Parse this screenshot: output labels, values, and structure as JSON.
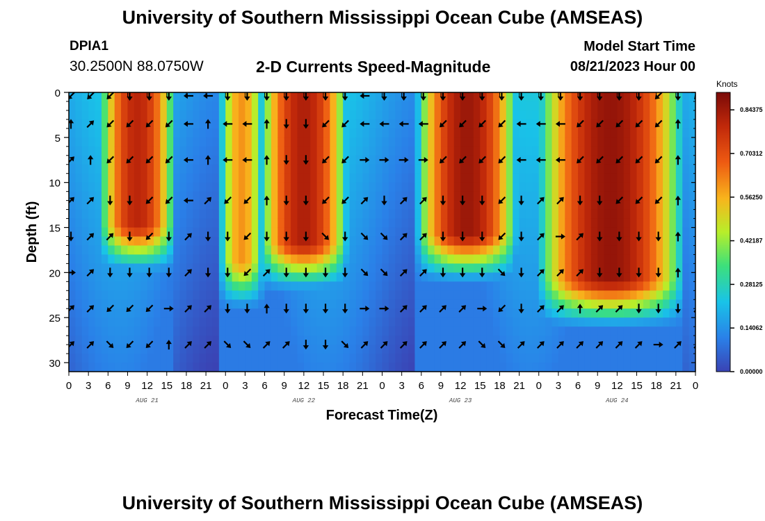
{
  "page": {
    "title": "University of Southern Mississippi Ocean Cube (AMSEAS)",
    "footer_title": "University of Southern Mississippi Ocean Cube (AMSEAS)",
    "station_id": "DPIA1",
    "coordinates": "30.2500N  88.0750W",
    "plot_title": "2-D Currents Speed-Magnitude",
    "model_start_label": "Model Start Time",
    "model_start_value": "08/21/2023 Hour 00"
  },
  "chart_data": {
    "type": "heatmap",
    "title": "2-D Currents Speed-Magnitude",
    "xlabel": "Forecast Time(Z)",
    "ylabel": "Depth (ft)",
    "x_ticks": [
      "0",
      "3",
      "6",
      "9",
      "12",
      "15",
      "18",
      "21",
      "0",
      "3",
      "6",
      "9",
      "12",
      "15",
      "18",
      "21",
      "0",
      "3",
      "6",
      "9",
      "12",
      "15",
      "18",
      "21",
      "0",
      "3",
      "6",
      "9",
      "12",
      "15",
      "18",
      "21",
      "0"
    ],
    "day_labels": [
      "AUG 21",
      "AUG 22",
      "AUG 23",
      "AUG 24"
    ],
    "y_ticks": [
      "0",
      "5",
      "10",
      "15",
      "20",
      "25",
      "30"
    ],
    "ylim": [
      0,
      31
    ],
    "xlim_hours": [
      0,
      96
    ],
    "colorbar": {
      "unit": "Knots",
      "min": 0.0,
      "max": 0.9,
      "tick_labels": [
        "0.84375",
        "0.70312",
        "0.56250",
        "0.42187",
        "0.28125",
        "0.14062",
        "0.00000"
      ],
      "tick_values": [
        0.84375,
        0.703125,
        0.5625,
        0.421875,
        0.28125,
        0.140625,
        0.0
      ]
    },
    "speed_model": {
      "depth_rows_ft": [
        0.5,
        1.5,
        2.5,
        3.5,
        4.5,
        5.5,
        6.5,
        7.5,
        8.5,
        9.5,
        10.5,
        11.5,
        12.5,
        13.5,
        14.5,
        15.5,
        16.5,
        17.5,
        18.5,
        19.5,
        20.5,
        21.5,
        22.5,
        23.5,
        24.5,
        25.5,
        26.5,
        27.5,
        28.5,
        29.5,
        30.5
      ],
      "hours": [
        0,
        3,
        6,
        9,
        12,
        15,
        18,
        21,
        24,
        27,
        30,
        33,
        36,
        39,
        42,
        45,
        48,
        51,
        54,
        57,
        60,
        63,
        66,
        69,
        72,
        75,
        78,
        81,
        84,
        87,
        90,
        93,
        96
      ],
      "bursts": [
        {
          "start_h": 7,
          "end_h": 14,
          "peak": 0.8,
          "max_depth_ft": 15
        },
        {
          "start_h": 25.5,
          "end_h": 27.5,
          "peak": 0.6,
          "max_depth_ft": 19
        },
        {
          "start_h": 31.5,
          "end_h": 40.5,
          "peak": 0.82,
          "max_depth_ft": 17
        },
        {
          "start_h": 55.5,
          "end_h": 66.5,
          "peak": 0.85,
          "max_depth_ft": 16
        },
        {
          "start_h": 74,
          "end_h": 92,
          "peak": 0.86,
          "max_depth_ft": 21
        }
      ],
      "background_speed": 0.18
    },
    "vector_rows_depth_ft": [
      0,
      3.5,
      7.5,
      12,
      16,
      20,
      24,
      28
    ],
    "vector_cols_hours": [
      0,
      3,
      6,
      9,
      12,
      15,
      18,
      21,
      24,
      27,
      30,
      33,
      36,
      39,
      42,
      45,
      48,
      51,
      54,
      57,
      60,
      63,
      66,
      69,
      72,
      75,
      78,
      81,
      84,
      87,
      90,
      93,
      96
    ],
    "vector_directions_deg": [
      [
        "SW",
        "SW",
        "SW",
        "S",
        "S",
        "S",
        "W",
        "W",
        "S",
        "S",
        "S",
        "S",
        "S",
        "S",
        "S",
        "W",
        "S",
        "S",
        "S",
        "S",
        "S",
        "S",
        "S",
        "S",
        "S",
        "S",
        "S",
        "S",
        "S",
        "S",
        "SW",
        "S",
        "SW"
      ],
      [
        "N",
        "NE",
        "SW",
        "SW",
        "SW",
        "SW",
        "W",
        "N",
        "W",
        "W",
        "N",
        "S",
        "S",
        "SW",
        "SW",
        "W",
        "W",
        "W",
        "W",
        "SW",
        "SW",
        "SW",
        "SW",
        "W",
        "W",
        "W",
        "SW",
        "SW",
        "SW",
        "SW",
        "SW",
        "N",
        "N"
      ],
      [
        "NE",
        "N",
        "SW",
        "SW",
        "SW",
        "SW",
        "W",
        "N",
        "W",
        "W",
        "N",
        "S",
        "S",
        "SW",
        "SW",
        "E",
        "E",
        "E",
        "E",
        "SW",
        "SW",
        "SW",
        "SW",
        "W",
        "W",
        "W",
        "SW",
        "SW",
        "SW",
        "SW",
        "SW",
        "N",
        "N"
      ],
      [
        "NE",
        "NE",
        "S",
        "S",
        "SW",
        "SW",
        "W",
        "NE",
        "SW",
        "SW",
        "N",
        "S",
        "S",
        "SW",
        "SW",
        "NE",
        "S",
        "NE",
        "NE",
        "S",
        "S",
        "S",
        "SW",
        "S",
        "NE",
        "NE",
        "S",
        "S",
        "SW",
        "SW",
        "SW",
        "N",
        "N"
      ],
      [
        "S",
        "NE",
        "NE",
        "S",
        "SW",
        "S",
        "NE",
        "S",
        "S",
        "SW",
        "S",
        "S",
        "S",
        "SE",
        "S",
        "SE",
        "SE",
        "NE",
        "NE",
        "S",
        "S",
        "S",
        "SW",
        "S",
        "NE",
        "E",
        "NE",
        "S",
        "S",
        "S",
        "S",
        "N",
        "N"
      ],
      [
        "E",
        "NE",
        "S",
        "S",
        "S",
        "S",
        "NE",
        "S",
        "S",
        "SW",
        "NE",
        "S",
        "S",
        "S",
        "S",
        "SE",
        "SE",
        "NE",
        "NE",
        "S",
        "S",
        "S",
        "SE",
        "S",
        "NE",
        "NE",
        "NE",
        "S",
        "S",
        "S",
        "S",
        "N",
        "N"
      ],
      [
        "NE",
        "NE",
        "SW",
        "SW",
        "SW",
        "E",
        "NE",
        "NE",
        "S",
        "S",
        "N",
        "S",
        "S",
        "S",
        "S",
        "E",
        "E",
        "NE",
        "NE",
        "NE",
        "NE",
        "E",
        "SW",
        "S",
        "NE",
        "NE",
        "N",
        "NE",
        "NE",
        "S",
        "S",
        "S",
        "NE"
      ],
      [
        "NE",
        "NE",
        "SE",
        "SW",
        "SW",
        "N",
        "NE",
        "NE",
        "SE",
        "SE",
        "NE",
        "NE",
        "S",
        "S",
        "SE",
        "NE",
        "NE",
        "NE",
        "NE",
        "NE",
        "NE",
        "SE",
        "SE",
        "NE",
        "NE",
        "NE",
        "NE",
        "NE",
        "NE",
        "NE",
        "E",
        "NE",
        "NE"
      ]
    ]
  }
}
